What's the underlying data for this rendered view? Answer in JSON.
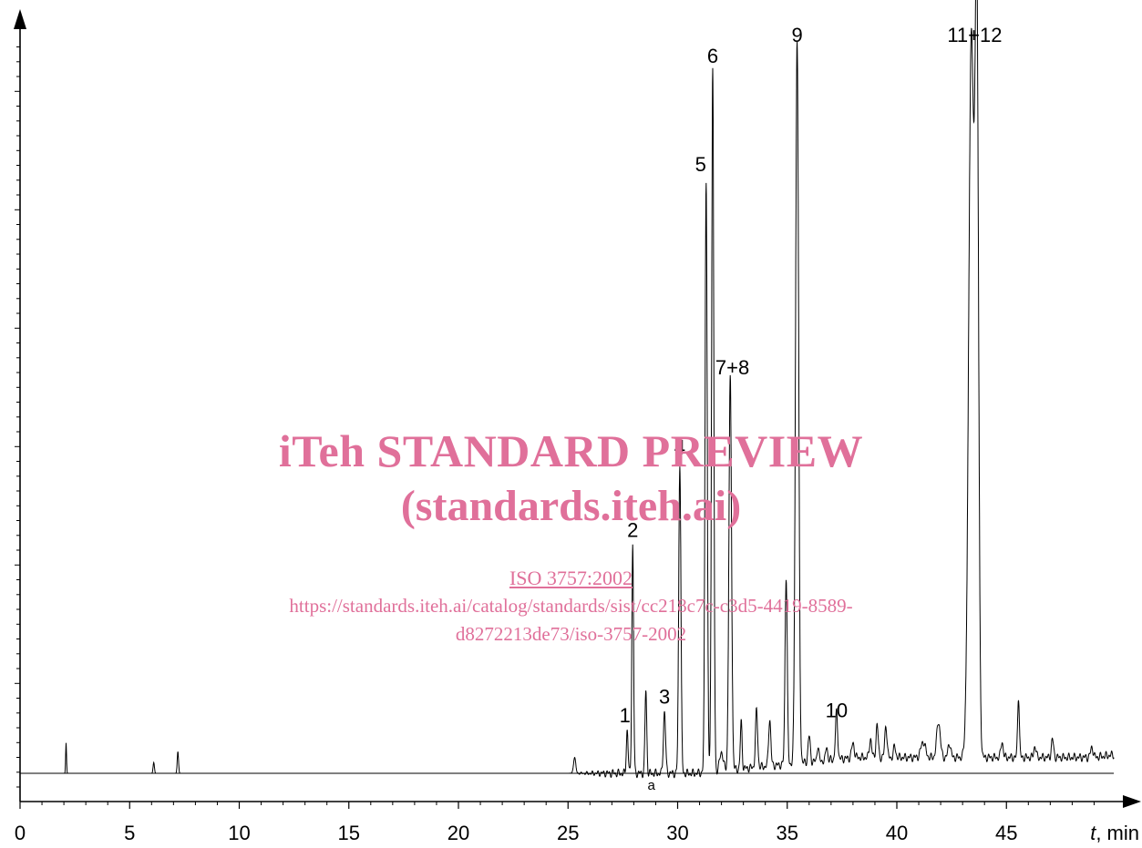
{
  "chart_data": {
    "type": "line",
    "xlabel_italic": "t",
    "xlabel_unit": ", min",
    "xlim": [
      0,
      50
    ],
    "xticks": [
      {
        "value": 0,
        "label": "0"
      },
      {
        "value": 5,
        "label": "5"
      },
      {
        "value": 10,
        "label": "10"
      },
      {
        "value": 15,
        "label": "15"
      },
      {
        "value": 20,
        "label": "20"
      },
      {
        "value": 25,
        "label": "25"
      },
      {
        "value": 30,
        "label": "30"
      },
      {
        "value": 35,
        "label": "35"
      },
      {
        "value": 40,
        "label": "40"
      },
      {
        "value": 45,
        "label": "45"
      }
    ],
    "ylim": [
      0,
      100
    ],
    "baseline_label": "a",
    "baseline_label_x": 28.8,
    "peaks": [
      {
        "x": 2.1,
        "h": 4.2,
        "w": 0.02
      },
      {
        "x": 6.1,
        "h": 1.5,
        "w": 0.03
      },
      {
        "x": 7.2,
        "h": 3.0,
        "w": 0.03
      },
      {
        "x": 25.3,
        "h": 2.2,
        "w": 0.05
      },
      {
        "x": 27.7,
        "h": 6.0,
        "w": 0.04
      },
      {
        "x": 27.95,
        "h": 31.5,
        "w": 0.04
      },
      {
        "x": 28.55,
        "h": 11.5,
        "w": 0.04
      },
      {
        "x": 29.4,
        "h": 8.5,
        "w": 0.05
      },
      {
        "x": 30.1,
        "h": 43.0,
        "w": 0.05
      },
      {
        "x": 31.3,
        "h": 82.0,
        "w": 0.05
      },
      {
        "x": 31.6,
        "h": 97.0,
        "w": 0.05
      },
      {
        "x": 32.0,
        "h": 2.6,
        "w": 0.08
      },
      {
        "x": 32.4,
        "h": 54.0,
        "w": 0.06
      },
      {
        "x": 32.9,
        "h": 6.5,
        "w": 0.04
      },
      {
        "x": 33.6,
        "h": 7.8,
        "w": 0.05
      },
      {
        "x": 34.2,
        "h": 6.5,
        "w": 0.05
      },
      {
        "x": 34.95,
        "h": 26.0,
        "w": 0.05
      },
      {
        "x": 35.45,
        "h": 100.0,
        "w": 0.07
      },
      {
        "x": 36.0,
        "h": 3.6,
        "w": 0.05
      },
      {
        "x": 36.4,
        "h": 2.2,
        "w": 0.04
      },
      {
        "x": 36.8,
        "h": 2.0,
        "w": 0.04
      },
      {
        "x": 37.25,
        "h": 6.5,
        "w": 0.05
      },
      {
        "x": 38.0,
        "h": 2.0,
        "w": 0.06
      },
      {
        "x": 38.8,
        "h": 2.6,
        "w": 0.05
      },
      {
        "x": 39.1,
        "h": 4.5,
        "w": 0.05
      },
      {
        "x": 39.5,
        "h": 4.5,
        "w": 0.05
      },
      {
        "x": 39.9,
        "h": 1.5,
        "w": 0.05
      },
      {
        "x": 41.2,
        "h": 2.2,
        "w": 0.1
      },
      {
        "x": 41.9,
        "h": 5.0,
        "w": 0.08
      },
      {
        "x": 42.4,
        "h": 2.0,
        "w": 0.06
      },
      {
        "x": 43.4,
        "h": 100.0,
        "w": 0.12
      },
      {
        "x": 43.65,
        "h": 100.0,
        "w": 0.08
      },
      {
        "x": 44.8,
        "h": 2.2,
        "w": 0.05
      },
      {
        "x": 45.55,
        "h": 8.5,
        "w": 0.04
      },
      {
        "x": 46.3,
        "h": 1.6,
        "w": 0.05
      },
      {
        "x": 47.1,
        "h": 2.5,
        "w": 0.05
      },
      {
        "x": 48.9,
        "h": 1.4,
        "w": 0.06
      }
    ],
    "peak_labels": [
      {
        "text": "1",
        "x": 27.6,
        "y": 6.3
      },
      {
        "text": "2",
        "x": 27.95,
        "y": 31.9
      },
      {
        "text": "3",
        "x": 29.4,
        "y": 8.9
      },
      {
        "text": "4",
        "x": 30.1,
        "y": 43.4
      },
      {
        "text": "5",
        "x": 31.05,
        "y": 82.5
      },
      {
        "text": "6",
        "x": 31.6,
        "y": 97.5
      },
      {
        "text": "7+8",
        "x": 32.5,
        "y": 54.4
      },
      {
        "text": "9",
        "x": 35.45,
        "y": 100.4
      },
      {
        "text": "10",
        "x": 37.25,
        "y": 7.0
      },
      {
        "text": "11+12",
        "x": 43.55,
        "y": 100.4
      }
    ]
  },
  "watermark": {
    "title": "iTeh STANDARD PREVIEW",
    "subtitle": "(standards.iteh.ai)",
    "iso": "ISO 3757:2002",
    "url_line1": "https://standards.iteh.ai/catalog/standards/sist/cc218c7c-c3d5-4419-8589-",
    "url_line2": "d8272213de73/iso-3757-2002"
  }
}
